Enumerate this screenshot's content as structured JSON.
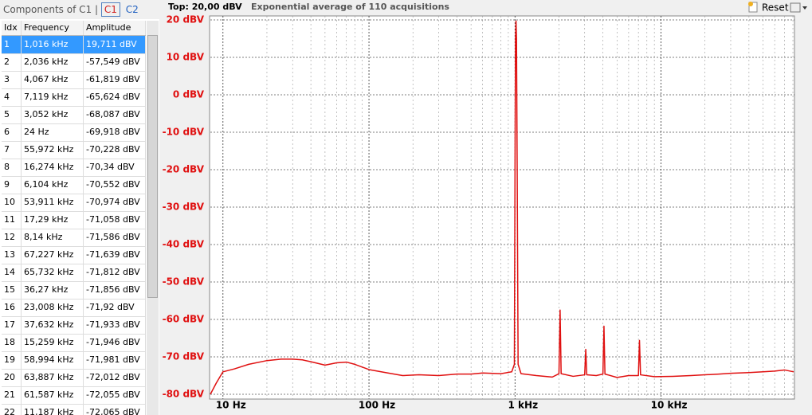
{
  "panel": {
    "title": "Components of C1",
    "separator": "|",
    "tabs": [
      "C1",
      "C2"
    ]
  },
  "table": {
    "columns": [
      "Idx",
      "Frequency",
      "Amplitude"
    ],
    "rows": [
      [
        1,
        "1,016 kHz",
        "19,711 dBV"
      ],
      [
        2,
        "2,036 kHz",
        "-57,549 dBV"
      ],
      [
        3,
        "4,067 kHz",
        "-61,819 dBV"
      ],
      [
        4,
        "7,119 kHz",
        "-65,624 dBV"
      ],
      [
        5,
        "3,052 kHz",
        "-68,087 dBV"
      ],
      [
        6,
        "24 Hz",
        "-69,918 dBV"
      ],
      [
        7,
        "55,972 kHz",
        "-70,228 dBV"
      ],
      [
        8,
        "16,274 kHz",
        "-70,34 dBV"
      ],
      [
        9,
        "6,104 kHz",
        "-70,552 dBV"
      ],
      [
        10,
        "53,911 kHz",
        "-70,974 dBV"
      ],
      [
        11,
        "17,29 kHz",
        "-71,058 dBV"
      ],
      [
        12,
        "8,14 kHz",
        "-71,586 dBV"
      ],
      [
        13,
        "67,227 kHz",
        "-71,639 dBV"
      ],
      [
        14,
        "65,732 kHz",
        "-71,812 dBV"
      ],
      [
        15,
        "36,27 kHz",
        "-71,856 dBV"
      ],
      [
        16,
        "23,008 kHz",
        "-71,92 dBV"
      ],
      [
        17,
        "37,632 kHz",
        "-71,933 dBV"
      ],
      [
        18,
        "15,259 kHz",
        "-71,946 dBV"
      ],
      [
        19,
        "58,994 kHz",
        "-71,981 dBV"
      ],
      [
        20,
        "63,887 kHz",
        "-72,012 dBV"
      ],
      [
        21,
        "61,587 kHz",
        "-72,055 dBV"
      ],
      [
        22,
        "11,187 kHz",
        "-72,065 dBV"
      ]
    ]
  },
  "toolbar": {
    "top": "Top: 20,00 dBV",
    "status": "Exponential average of 110 acquisitions",
    "reset": "Reset"
  },
  "chart_data": {
    "type": "line",
    "xscale": "log",
    "grid": true,
    "color": "#e01010",
    "xlim": [
      8.2,
      82000
    ],
    "ylim": [
      -80,
      20
    ],
    "xticks": [
      {
        "value": 10,
        "label": "10 Hz"
      },
      {
        "value": 100,
        "label": "100 Hz"
      },
      {
        "value": 1000,
        "label": "1 kHz"
      },
      {
        "value": 10000,
        "label": "10 kHz"
      }
    ],
    "xminorticks": [
      20,
      30,
      40,
      50,
      60,
      70,
      80,
      90,
      200,
      300,
      400,
      500,
      600,
      700,
      800,
      900,
      2000,
      3000,
      4000,
      5000,
      6000,
      7000,
      8000,
      9000,
      20000,
      30000,
      40000,
      50000,
      60000,
      70000,
      80000
    ],
    "yticks": [
      {
        "value": 20,
        "label": "20 dBV"
      },
      {
        "value": 10,
        "label": "10 dBV"
      },
      {
        "value": 0,
        "label": "0 dBV"
      },
      {
        "value": -10,
        "label": "-10 dBV"
      },
      {
        "value": -20,
        "label": "-20 dBV"
      },
      {
        "value": -30,
        "label": "-30 dBV"
      },
      {
        "value": -40,
        "label": "-40 dBV"
      },
      {
        "value": -50,
        "label": "-50 dBV"
      },
      {
        "value": -60,
        "label": "-60 dBV"
      },
      {
        "value": -70,
        "label": "-70 dBV"
      },
      {
        "value": -80,
        "label": "-80 dBV"
      }
    ],
    "x": [
      8.2,
      9,
      10,
      12,
      15,
      20,
      25,
      30,
      35,
      40,
      50,
      60,
      70,
      80,
      100,
      130,
      170,
      220,
      300,
      400,
      500,
      600,
      800,
      950,
      990,
      1000,
      1008,
      1016,
      1024,
      1035,
      1050,
      1100,
      1400,
      1800,
      2000,
      2036,
      2070,
      2500,
      3000,
      3052,
      3100,
      3600,
      4000,
      4067,
      4130,
      5000,
      6000,
      7000,
      7119,
      7240,
      9000,
      12000,
      16000,
      20000,
      25000,
      30000,
      40000,
      50000,
      60000,
      70000,
      81000
    ],
    "values": [
      -80,
      -77,
      -74,
      -73.2,
      -72,
      -71,
      -70.6,
      -70.6,
      -70.8,
      -71.3,
      -72.2,
      -71.6,
      -71.4,
      -72,
      -73.4,
      -74.2,
      -75,
      -74.8,
      -75,
      -74.6,
      -74.6,
      -74.3,
      -74.5,
      -74,
      -72,
      -20,
      15,
      19.7,
      15,
      -20,
      -72,
      -74.5,
      -75,
      -75.4,
      -74.5,
      -57.5,
      -74.5,
      -75.2,
      -74.8,
      -68,
      -74.8,
      -75,
      -74.6,
      -61.8,
      -74.6,
      -75.5,
      -75,
      -75,
      -65.6,
      -74.8,
      -75.3,
      -75.2,
      -75,
      -74.8,
      -74.6,
      -74.4,
      -74.2,
      -74,
      -73.8,
      -73.5,
      -74
    ]
  }
}
